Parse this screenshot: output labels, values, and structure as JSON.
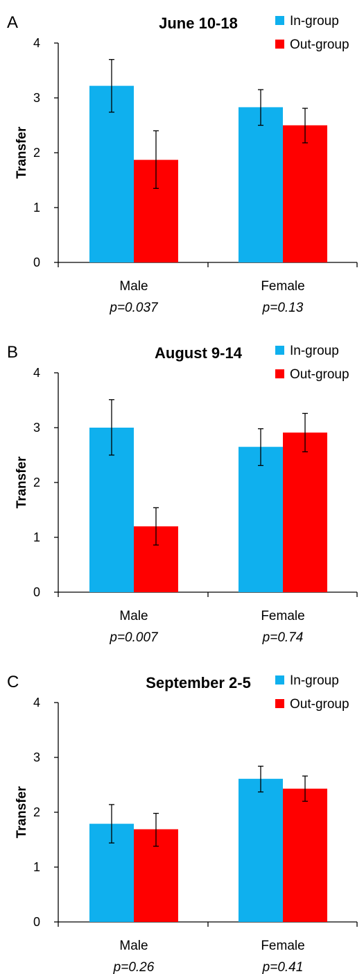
{
  "chart_data": [
    {
      "type": "bar",
      "panel": "A",
      "title": "June 10-18",
      "ylabel": "Transfer",
      "ylim": [
        0,
        4
      ],
      "yticks": [
        "0",
        "1",
        "2",
        "3",
        "4"
      ],
      "categories": [
        "Male",
        "Female"
      ],
      "category_notes": [
        "p=0.037",
        "p=0.13"
      ],
      "legend_position": "top-right",
      "series": [
        {
          "name": "In-group",
          "color": "#0fb0ee",
          "values": [
            3.22,
            2.83
          ],
          "err_low": [
            2.74,
            2.5
          ],
          "err_high": [
            3.7,
            3.15
          ]
        },
        {
          "name": "Out-group",
          "color": "#ff0000",
          "values": [
            1.87,
            2.5
          ],
          "err_low": [
            1.35,
            2.18
          ],
          "err_high": [
            2.4,
            2.81
          ]
        }
      ]
    },
    {
      "type": "bar",
      "panel": "B",
      "title": "August 9-14",
      "ylabel": "Transfer",
      "ylim": [
        0,
        4
      ],
      "yticks": [
        "0",
        "1",
        "2",
        "3",
        "4"
      ],
      "categories": [
        "Male",
        "Female"
      ],
      "category_notes": [
        "p=0.007",
        "p=0.74"
      ],
      "legend_position": "top-right",
      "series": [
        {
          "name": "In-group",
          "color": "#0fb0ee",
          "values": [
            3.0,
            2.65
          ],
          "err_low": [
            2.5,
            2.31
          ],
          "err_high": [
            3.51,
            2.98
          ]
        },
        {
          "name": "Out-group",
          "color": "#ff0000",
          "values": [
            1.2,
            2.91
          ],
          "err_low": [
            0.86,
            2.56
          ],
          "err_high": [
            1.54,
            3.26
          ]
        }
      ]
    },
    {
      "type": "bar",
      "panel": "C",
      "title": "September 2-5",
      "ylabel": "Transfer",
      "ylim": [
        0,
        4
      ],
      "yticks": [
        "0",
        "1",
        "2",
        "3",
        "4"
      ],
      "categories": [
        "Male",
        "Female"
      ],
      "category_notes": [
        "p=0.26",
        "p=0.41"
      ],
      "legend_position": "top-right",
      "series": [
        {
          "name": "In-group",
          "color": "#0fb0ee",
          "values": [
            1.79,
            2.61
          ],
          "err_low": [
            1.44,
            2.37
          ],
          "err_high": [
            2.14,
            2.84
          ]
        },
        {
          "name": "Out-group",
          "color": "#ff0000",
          "values": [
            1.69,
            2.43
          ],
          "err_low": [
            1.38,
            2.2
          ],
          "err_high": [
            1.98,
            2.66
          ]
        }
      ]
    }
  ]
}
